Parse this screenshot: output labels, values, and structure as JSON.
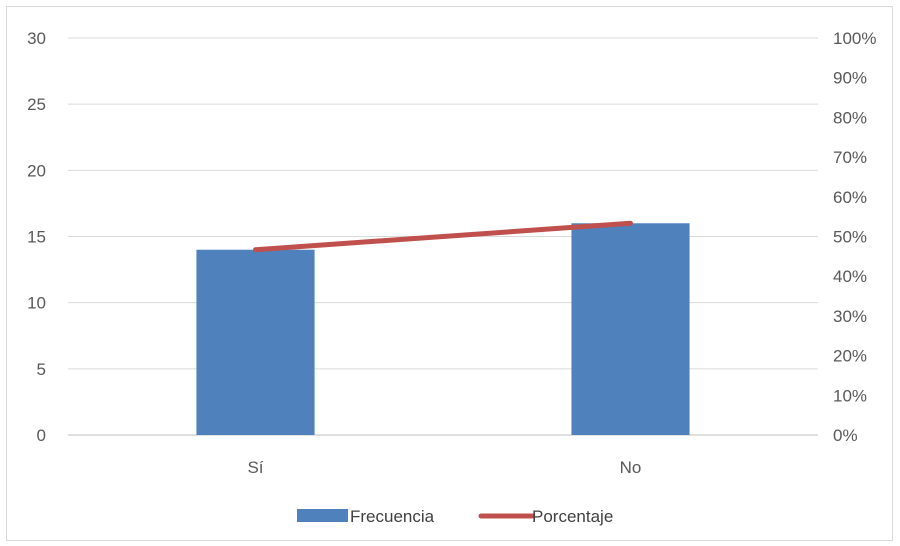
{
  "chart_data": {
    "type": "bar",
    "categories": [
      "Sí",
      "No"
    ],
    "series": [
      {
        "name": "Frecuencia",
        "type": "bar",
        "axis": "left",
        "values": [
          14,
          16
        ],
        "color": "#4f81bd"
      },
      {
        "name": "Porcentaje",
        "type": "line",
        "axis": "right",
        "values": [
          0.4667,
          0.5333
        ],
        "color": "#c0504d"
      }
    ],
    "y_left": {
      "min": 0,
      "max": 30,
      "ticks": [
        "0",
        "5",
        "10",
        "15",
        "20",
        "25",
        "30"
      ]
    },
    "y_right": {
      "min": 0,
      "max": 1,
      "ticks": [
        "0%",
        "10%",
        "20%",
        "30%",
        "40%",
        "50%",
        "60%",
        "70%",
        "80%",
        "90%",
        "100%"
      ]
    },
    "grid": true,
    "legend_position": "bottom"
  }
}
